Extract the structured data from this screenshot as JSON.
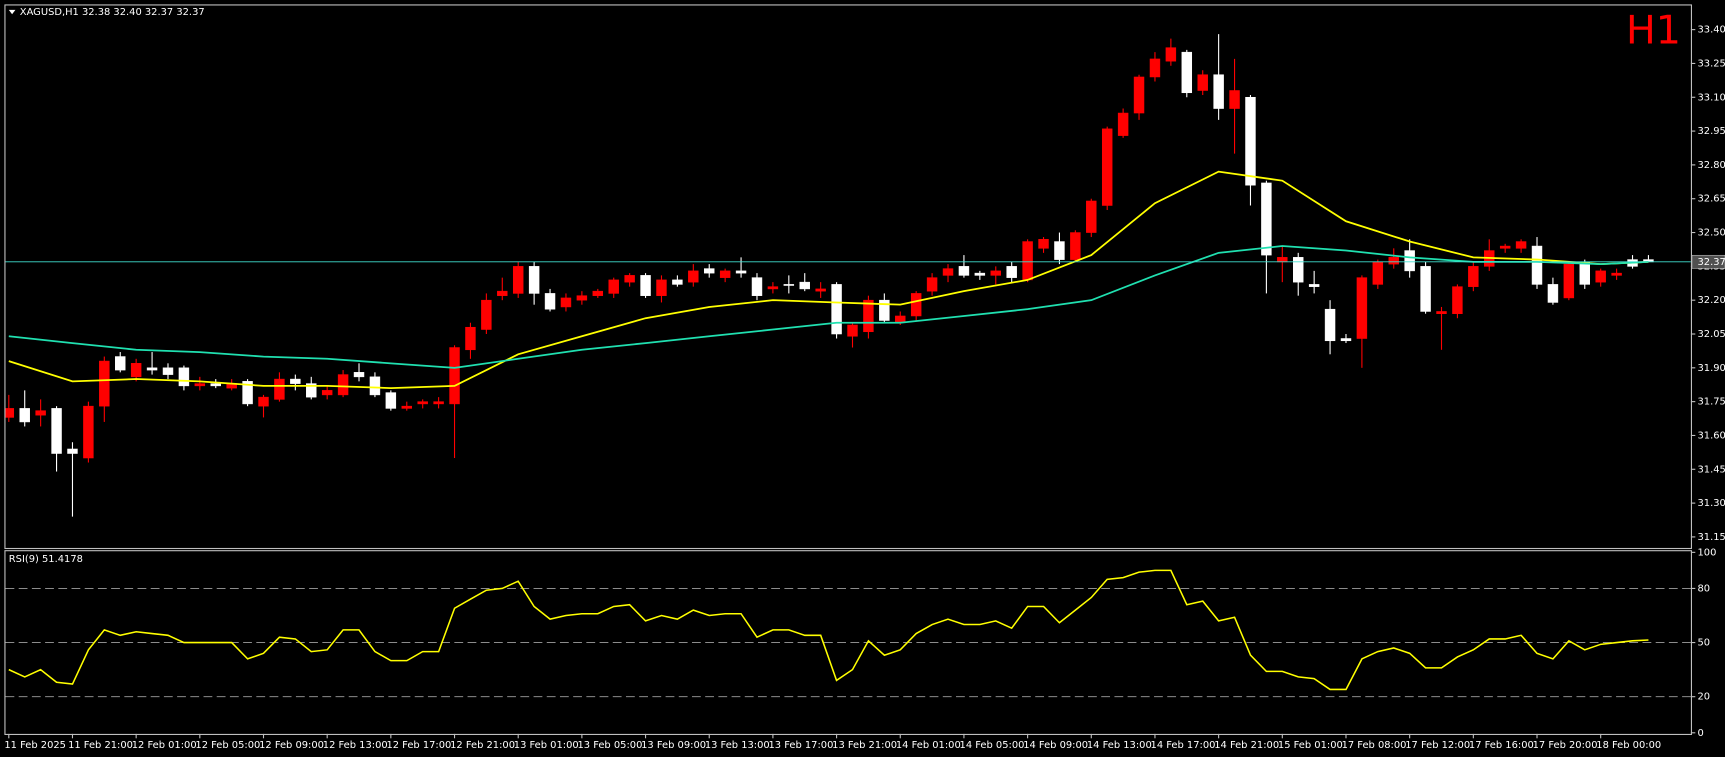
{
  "chart_data": [
    {
      "type": "candlestick",
      "title": "XAGUSD,H1  32.38 32.40 32.37 32.37",
      "timeframe": "H1",
      "categories": [
        "11 Feb 2025",
        null,
        null,
        null,
        "11 Feb 21:00",
        null,
        null,
        null,
        "12 Feb 01:00",
        null,
        null,
        null,
        "12 Feb 05:00",
        null,
        null,
        null,
        "12 Feb 09:00",
        null,
        null,
        null,
        "12 Feb 13:00",
        null,
        null,
        null,
        "12 Feb 17:00",
        null,
        null,
        null,
        "12 Feb 21:00",
        null,
        null,
        null,
        "13 Feb 01:00",
        null,
        null,
        null,
        "13 Feb 05:00",
        null,
        null,
        null,
        "13 Feb 09:00",
        null,
        null,
        null,
        "13 Feb 13:00",
        null,
        null,
        null,
        "13 Feb 17:00",
        null,
        null,
        null,
        "13 Feb 21:00",
        null,
        null,
        null,
        "14 Feb 01:00",
        null,
        null,
        null,
        "14 Feb 05:00",
        null,
        null,
        null,
        "14 Feb 09:00",
        null,
        null,
        null,
        "14 Feb 13:00",
        null,
        null,
        null,
        "14 Feb 17:00",
        null,
        null,
        null,
        "14 Feb 21:00",
        null,
        null,
        null,
        "15 Feb 01:00",
        null,
        null,
        null,
        "17 Feb 08:00",
        null,
        null,
        null,
        "17 Feb 12:00",
        null,
        null,
        null,
        "17 Feb 16:00",
        null,
        null,
        null,
        "17 Feb 20:00",
        null,
        null,
        null,
        "18 Feb 00:00",
        null,
        null,
        null
      ],
      "open": [
        31.68,
        31.72,
        31.69,
        31.72,
        31.54,
        31.5,
        31.73,
        31.95,
        31.86,
        31.9,
        31.9,
        31.9,
        31.82,
        31.83,
        31.81,
        31.84,
        31.73,
        31.76,
        31.85,
        31.83,
        31.78,
        31.78,
        31.88,
        31.86,
        31.79,
        31.72,
        31.74,
        31.74,
        31.74,
        31.98,
        32.07,
        32.22,
        32.23,
        32.35,
        32.23,
        32.17,
        32.2,
        32.22,
        32.23,
        32.28,
        32.31,
        32.22,
        32.29,
        32.28,
        32.34,
        32.3,
        32.33,
        32.3,
        32.25,
        32.27,
        32.28,
        32.24,
        32.27,
        32.04,
        32.06,
        32.2,
        32.1,
        32.13,
        32.24,
        32.31,
        32.35,
        32.32,
        32.31,
        32.35,
        32.29,
        32.43,
        32.46,
        32.38,
        32.5,
        32.62,
        32.93,
        33.03,
        33.19,
        33.26,
        33.3,
        33.13,
        33.2,
        33.05,
        33.1,
        32.72,
        32.37,
        32.39,
        32.27,
        32.16,
        32.03,
        32.03,
        32.27,
        32.36,
        32.42,
        32.35,
        32.14,
        32.14,
        32.26,
        32.35,
        32.43,
        32.43,
        32.44,
        32.27,
        32.21,
        32.37,
        32.28,
        32.31,
        32.38,
        32.38
      ],
      "high": [
        31.78,
        31.8,
        31.76,
        31.73,
        31.57,
        31.75,
        31.95,
        31.97,
        31.94,
        31.97,
        31.92,
        31.91,
        31.86,
        31.85,
        31.85,
        31.85,
        31.78,
        31.88,
        31.87,
        31.86,
        31.82,
        31.89,
        31.92,
        31.88,
        31.8,
        31.75,
        31.76,
        31.77,
        32.0,
        32.1,
        32.23,
        32.3,
        32.37,
        32.37,
        32.25,
        32.23,
        32.24,
        32.25,
        32.3,
        32.32,
        32.32,
        32.31,
        32.31,
        32.36,
        32.36,
        32.34,
        32.39,
        32.32,
        32.28,
        32.31,
        32.32,
        32.28,
        32.28,
        32.1,
        32.22,
        32.23,
        32.15,
        32.24,
        32.32,
        32.36,
        32.4,
        32.33,
        32.35,
        32.37,
        32.47,
        32.48,
        32.5,
        32.51,
        32.65,
        32.97,
        33.05,
        33.2,
        33.3,
        33.36,
        33.31,
        33.22,
        33.38,
        33.27,
        33.11,
        32.73,
        32.44,
        32.41,
        32.33,
        32.2,
        32.05,
        32.31,
        32.38,
        32.43,
        32.47,
        32.37,
        32.17,
        32.27,
        32.37,
        32.47,
        32.45,
        32.47,
        32.48,
        32.3,
        32.37,
        32.38,
        32.34,
        32.34,
        32.4,
        32.4
      ],
      "low": [
        31.66,
        31.64,
        31.64,
        31.44,
        31.24,
        31.48,
        31.66,
        31.88,
        31.84,
        31.87,
        31.85,
        31.8,
        31.8,
        31.81,
        31.8,
        31.73,
        31.68,
        31.75,
        31.8,
        31.76,
        31.76,
        31.77,
        31.84,
        31.77,
        31.71,
        31.71,
        31.72,
        31.72,
        31.5,
        31.94,
        32.05,
        32.2,
        32.21,
        32.18,
        32.15,
        32.15,
        32.18,
        32.21,
        32.21,
        32.26,
        32.21,
        32.19,
        32.26,
        32.26,
        32.3,
        32.28,
        32.3,
        32.2,
        32.23,
        32.23,
        32.24,
        32.21,
        32.03,
        31.99,
        32.03,
        32.1,
        32.09,
        32.11,
        32.22,
        32.28,
        32.3,
        32.29,
        32.27,
        32.28,
        32.28,
        32.41,
        32.36,
        32.37,
        32.48,
        32.6,
        32.92,
        33.0,
        33.17,
        33.24,
        33.1,
        33.11,
        33.0,
        32.85,
        32.62,
        32.23,
        32.28,
        32.22,
        32.23,
        31.96,
        32.01,
        31.9,
        32.25,
        32.34,
        32.3,
        32.14,
        31.98,
        32.12,
        32.24,
        32.33,
        32.41,
        32.41,
        32.25,
        32.18,
        32.2,
        32.25,
        32.26,
        32.29,
        32.34,
        32.37
      ],
      "close": [
        31.72,
        31.66,
        31.71,
        31.52,
        31.52,
        31.73,
        31.93,
        31.89,
        31.92,
        31.89,
        31.87,
        31.82,
        31.83,
        31.82,
        31.83,
        31.74,
        31.77,
        31.85,
        31.83,
        31.77,
        31.8,
        31.87,
        31.86,
        31.78,
        31.72,
        31.73,
        31.75,
        31.75,
        31.99,
        32.08,
        32.2,
        32.24,
        32.35,
        32.23,
        32.16,
        32.21,
        32.22,
        32.24,
        32.29,
        32.31,
        32.22,
        32.29,
        32.27,
        32.33,
        32.32,
        32.33,
        32.32,
        32.22,
        32.26,
        32.27,
        32.25,
        32.25,
        32.05,
        32.09,
        32.2,
        32.11,
        32.13,
        32.23,
        32.3,
        32.34,
        32.31,
        32.31,
        32.33,
        32.3,
        32.46,
        32.47,
        32.38,
        32.5,
        32.64,
        32.96,
        33.03,
        33.19,
        33.27,
        33.32,
        33.12,
        33.2,
        33.05,
        33.13,
        32.71,
        32.4,
        32.39,
        32.28,
        32.26,
        32.02,
        32.02,
        32.3,
        32.37,
        32.39,
        32.33,
        32.15,
        32.15,
        32.26,
        32.35,
        32.42,
        32.44,
        32.46,
        32.27,
        32.19,
        32.36,
        32.27,
        32.33,
        32.32,
        32.35,
        32.37
      ],
      "up_color": "#ff0000",
      "down_color": "#ffffff",
      "ylim": [
        31.106,
        33.507
      ],
      "yticks": [
        31.15,
        {
          "value": 31.3,
          "label": "31.30"
        },
        31.45,
        {
          "value": 31.6,
          "label": "31.60"
        },
        31.75,
        {
          "value": 31.9,
          "label": "31.90"
        },
        32.05,
        {
          "value": 32.2,
          "label": "32.20"
        },
        32.35,
        {
          "value": 32.5,
          "label": "32.50"
        },
        32.65,
        {
          "value": 32.8,
          "label": "32.80"
        },
        32.95,
        {
          "value": 33.1,
          "label": "33.10"
        },
        33.25,
        {
          "value": 33.4,
          "label": "33.40"
        }
      ],
      "last_price": 32.37,
      "last_price_color": "#40e0d0",
      "lines": [
        {
          "color": "#ffff00",
          "x": [
            0,
            4,
            8,
            12,
            16,
            20,
            24,
            28,
            32,
            36,
            40,
            44,
            48,
            52,
            56,
            60,
            64,
            68,
            72,
            76,
            80,
            84,
            88,
            92,
            96,
            100,
            103
          ],
          "values": [
            31.93,
            31.84,
            31.85,
            31.84,
            31.82,
            31.82,
            31.81,
            31.82,
            31.96,
            32.04,
            32.12,
            32.17,
            32.2,
            32.19,
            32.18,
            32.24,
            32.29,
            32.4,
            32.63,
            32.77,
            32.73,
            32.55,
            32.46,
            32.39,
            32.38,
            32.36,
            32.37
          ]
        },
        {
          "color": "#20e0b0",
          "x": [
            0,
            4,
            8,
            12,
            16,
            20,
            24,
            28,
            32,
            36,
            40,
            44,
            48,
            52,
            56,
            60,
            64,
            68,
            72,
            76,
            80,
            84,
            88,
            92,
            96,
            100,
            103
          ],
          "values": [
            32.04,
            32.01,
            31.98,
            31.97,
            31.95,
            31.94,
            31.92,
            31.9,
            31.94,
            31.98,
            32.01,
            32.04,
            32.07,
            32.1,
            32.1,
            32.13,
            32.16,
            32.2,
            32.31,
            32.41,
            32.44,
            32.42,
            32.39,
            32.37,
            32.37,
            32.36,
            32.37
          ]
        }
      ]
    },
    {
      "type": "line",
      "label": "RSI(9) 51.4178",
      "color": "#ffff00",
      "values": [
        35,
        31,
        35,
        28,
        27,
        46,
        57,
        54,
        56,
        55,
        54,
        50,
        50,
        50,
        50,
        41,
        44,
        53,
        52,
        45,
        46,
        57,
        57,
        45,
        40,
        40,
        45,
        45,
        69,
        74,
        79,
        80,
        84,
        70,
        63,
        65,
        66,
        66,
        70,
        71,
        62,
        65,
        63,
        68,
        65,
        66,
        66,
        53,
        57,
        57,
        54,
        54,
        29,
        35,
        51,
        43,
        46,
        55,
        60,
        63,
        60,
        60,
        62,
        58,
        70,
        70,
        61,
        68,
        75,
        85,
        86,
        89,
        90,
        90,
        71,
        73,
        62,
        64,
        43,
        34,
        34,
        31,
        30,
        24,
        24,
        41,
        45,
        47,
        44,
        36,
        36,
        42,
        46,
        52,
        52,
        54,
        44,
        41,
        51,
        46,
        49,
        50,
        51,
        51.4178
      ],
      "ylim": [
        0,
        100
      ],
      "yticks": [
        0,
        20,
        50,
        80,
        100
      ],
      "levels": [
        20,
        50,
        80
      ]
    }
  ]
}
